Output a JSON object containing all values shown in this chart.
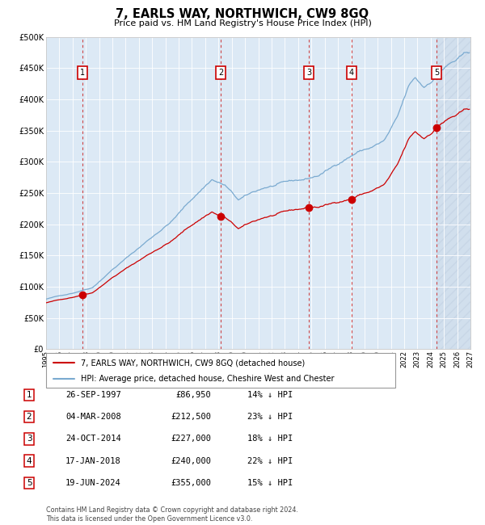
{
  "title": "7, EARLS WAY, NORTHWICH, CW9 8GQ",
  "subtitle": "Price paid vs. HM Land Registry's House Price Index (HPI)",
  "hpi_label": "HPI: Average price, detached house, Cheshire West and Chester",
  "price_label": "7, EARLS WAY, NORTHWICH, CW9 8GQ (detached house)",
  "transactions": [
    {
      "num": 1,
      "date": "26-SEP-1997",
      "date_val": 1997.74,
      "price": 86950,
      "pct": "14% ↓ HPI"
    },
    {
      "num": 2,
      "date": "04-MAR-2008",
      "date_val": 2008.17,
      "price": 212500,
      "pct": "23% ↓ HPI"
    },
    {
      "num": 3,
      "date": "24-OCT-2014",
      "date_val": 2014.81,
      "price": 227000,
      "pct": "18% ↓ HPI"
    },
    {
      "num": 4,
      "date": "17-JAN-2018",
      "date_val": 2018.04,
      "price": 240000,
      "pct": "22% ↓ HPI"
    },
    {
      "num": 5,
      "date": "19-JUN-2024",
      "date_val": 2024.46,
      "price": 355000,
      "pct": "15% ↓ HPI"
    }
  ],
  "hpi_color": "#7aaad0",
  "price_color": "#cc0000",
  "marker_color": "#cc0000",
  "dashed_line_color": "#cc3333",
  "plot_bg": "#dce9f5",
  "grid_color": "#ffffff",
  "ylim": [
    0,
    500000
  ],
  "xlim_start": 1995.0,
  "xlim_end": 2027.0,
  "footer": "Contains HM Land Registry data © Crown copyright and database right 2024.\nThis data is licensed under the Open Government Licence v3.0."
}
